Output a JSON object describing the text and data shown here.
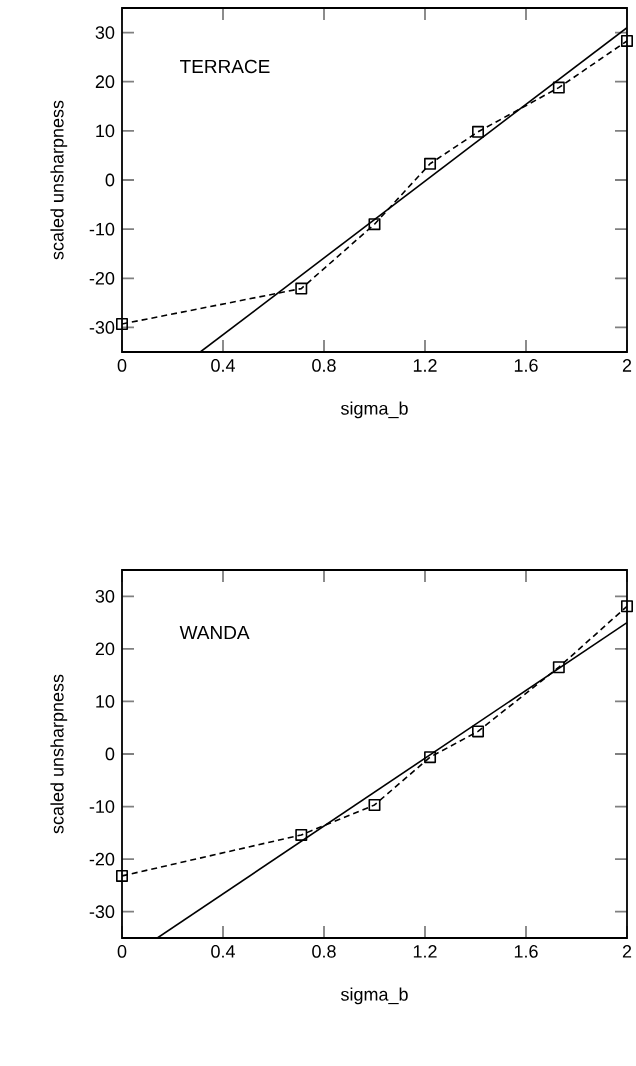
{
  "chart_data": [
    {
      "type": "line",
      "annotations": [
        "TERRACE"
      ],
      "xlabel": "sigma_b",
      "ylabel": "scaled unsharpness",
      "xlim": [
        0,
        2
      ],
      "ylim": [
        -35,
        35
      ],
      "xticks": [
        0,
        0.4,
        0.8,
        1.2,
        1.6,
        2
      ],
      "yticks": [
        -30,
        -20,
        -10,
        0,
        10,
        20,
        30
      ],
      "grid": false,
      "series": [
        {
          "color": "#000000",
          "marker": "square",
          "line_style": "dashed",
          "x": [
            0,
            0.71,
            1,
            1.22,
            1.41,
            1.73,
            2
          ],
          "values": [
            -29.3,
            -22.1,
            -9.0,
            3.3,
            9.8,
            18.8,
            28.3
          ]
        },
        {
          "color": "#000000",
          "marker": "none",
          "line_style": "solid",
          "x": [
            0.31,
            2
          ],
          "values": [
            -35,
            31
          ]
        }
      ]
    },
    {
      "type": "line",
      "annotations": [
        "WANDA"
      ],
      "xlabel": "sigma_b",
      "ylabel": "scaled unsharpness",
      "xlim": [
        0,
        2
      ],
      "ylim": [
        -35,
        35
      ],
      "xticks": [
        0,
        0.4,
        0.8,
        1.2,
        1.6,
        2
      ],
      "yticks": [
        -30,
        -20,
        -10,
        0,
        10,
        20,
        30
      ],
      "grid": false,
      "series": [
        {
          "color": "#000000",
          "marker": "square",
          "line_style": "dashed",
          "x": [
            0,
            0.71,
            1,
            1.22,
            1.41,
            1.73,
            2
          ],
          "values": [
            -23.2,
            -15.4,
            -9.7,
            -0.6,
            4.3,
            16.5,
            28.1
          ]
        },
        {
          "color": "#000000",
          "marker": "none",
          "line_style": "solid",
          "x": [
            0.14,
            2
          ],
          "values": [
            -35,
            25
          ]
        }
      ]
    }
  ]
}
